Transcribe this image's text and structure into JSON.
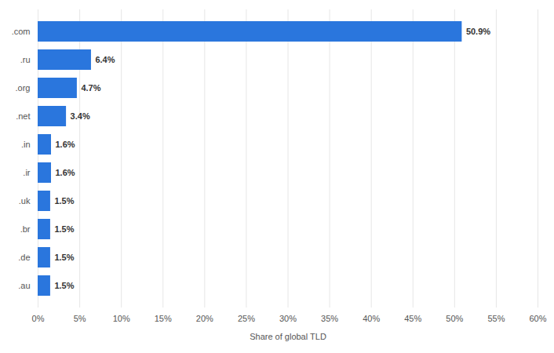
{
  "chart_data": {
    "type": "bar",
    "orientation": "horizontal",
    "categories": [
      ".com",
      ".ru",
      ".org",
      ".net",
      ".in",
      ".ir",
      ".uk",
      ".br",
      ".de",
      ".au"
    ],
    "values": [
      50.9,
      6.4,
      4.7,
      3.4,
      1.6,
      1.6,
      1.5,
      1.5,
      1.5,
      1.5
    ],
    "value_labels": [
      "50.9%",
      "6.4%",
      "4.7%",
      "3.4%",
      "1.6%",
      "1.6%",
      "1.5%",
      "1.5%",
      "1.5%",
      "1.5%"
    ],
    "data_labels": true,
    "color": "#2a76dd",
    "xlabel": "Share of global TLD",
    "xlim": [
      0,
      60
    ],
    "xticks": [
      {
        "value": 0,
        "label": "0%"
      },
      {
        "value": 5,
        "label": "5%"
      },
      {
        "value": 10,
        "label": "10%"
      },
      {
        "value": 15,
        "label": "15%"
      },
      {
        "value": 20,
        "label": "20%"
      },
      {
        "value": 25,
        "label": "25%"
      },
      {
        "value": 30,
        "label": "30%"
      },
      {
        "value": 35,
        "label": "35%"
      },
      {
        "value": 40,
        "label": "40%"
      },
      {
        "value": 45,
        "label": "45%"
      },
      {
        "value": 50,
        "label": "50%"
      },
      {
        "value": 55,
        "label": "55%"
      },
      {
        "value": 60,
        "label": "60%"
      }
    ],
    "grid": true
  }
}
